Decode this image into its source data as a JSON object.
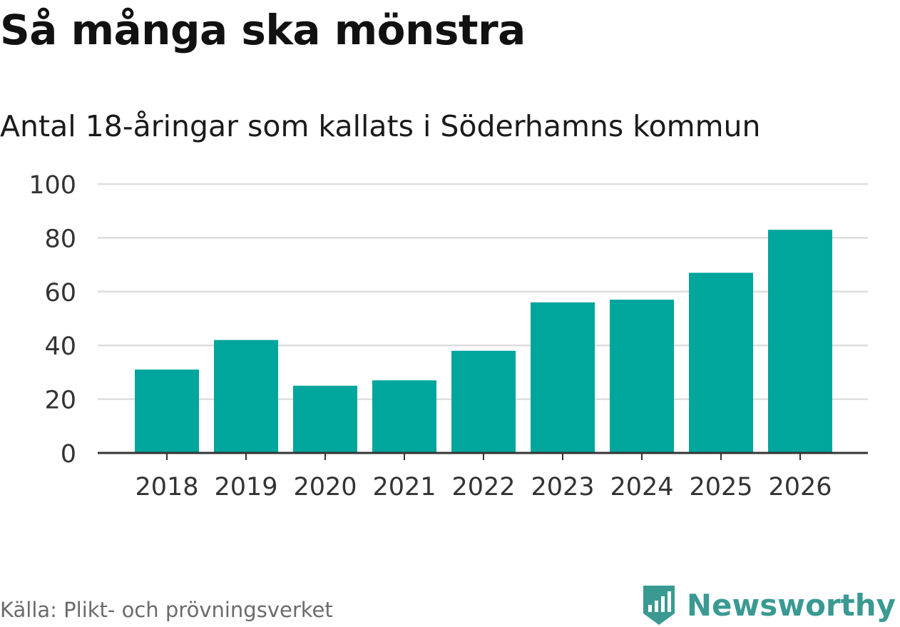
{
  "header": {
    "title": "Så många ska mönstra",
    "subtitle": "Antal 18-åringar som kallats i Söderhamns kommun"
  },
  "footer": {
    "source": "Källa: Plikt- och prövningsverket",
    "brand": "Newsworthy",
    "brand_icon": "bar-chart-tag-icon"
  },
  "colors": {
    "bar": "#00a59b",
    "grid": "#dddddd",
    "axis": "#333333",
    "brand": "#3a9a92"
  },
  "chart_data": {
    "type": "bar",
    "title": "Så många ska mönstra",
    "subtitle": "Antal 18-åringar som kallats i Söderhamns kommun",
    "xlabel": "",
    "ylabel": "",
    "categories": [
      "2018",
      "2019",
      "2020",
      "2021",
      "2022",
      "2023",
      "2024",
      "2025",
      "2026"
    ],
    "values": [
      31,
      42,
      25,
      27,
      38,
      56,
      57,
      67,
      83
    ],
    "ylim": [
      0,
      100
    ],
    "yticks": [
      0,
      20,
      40,
      60,
      80,
      100
    ],
    "grid": true,
    "legend": "none"
  }
}
